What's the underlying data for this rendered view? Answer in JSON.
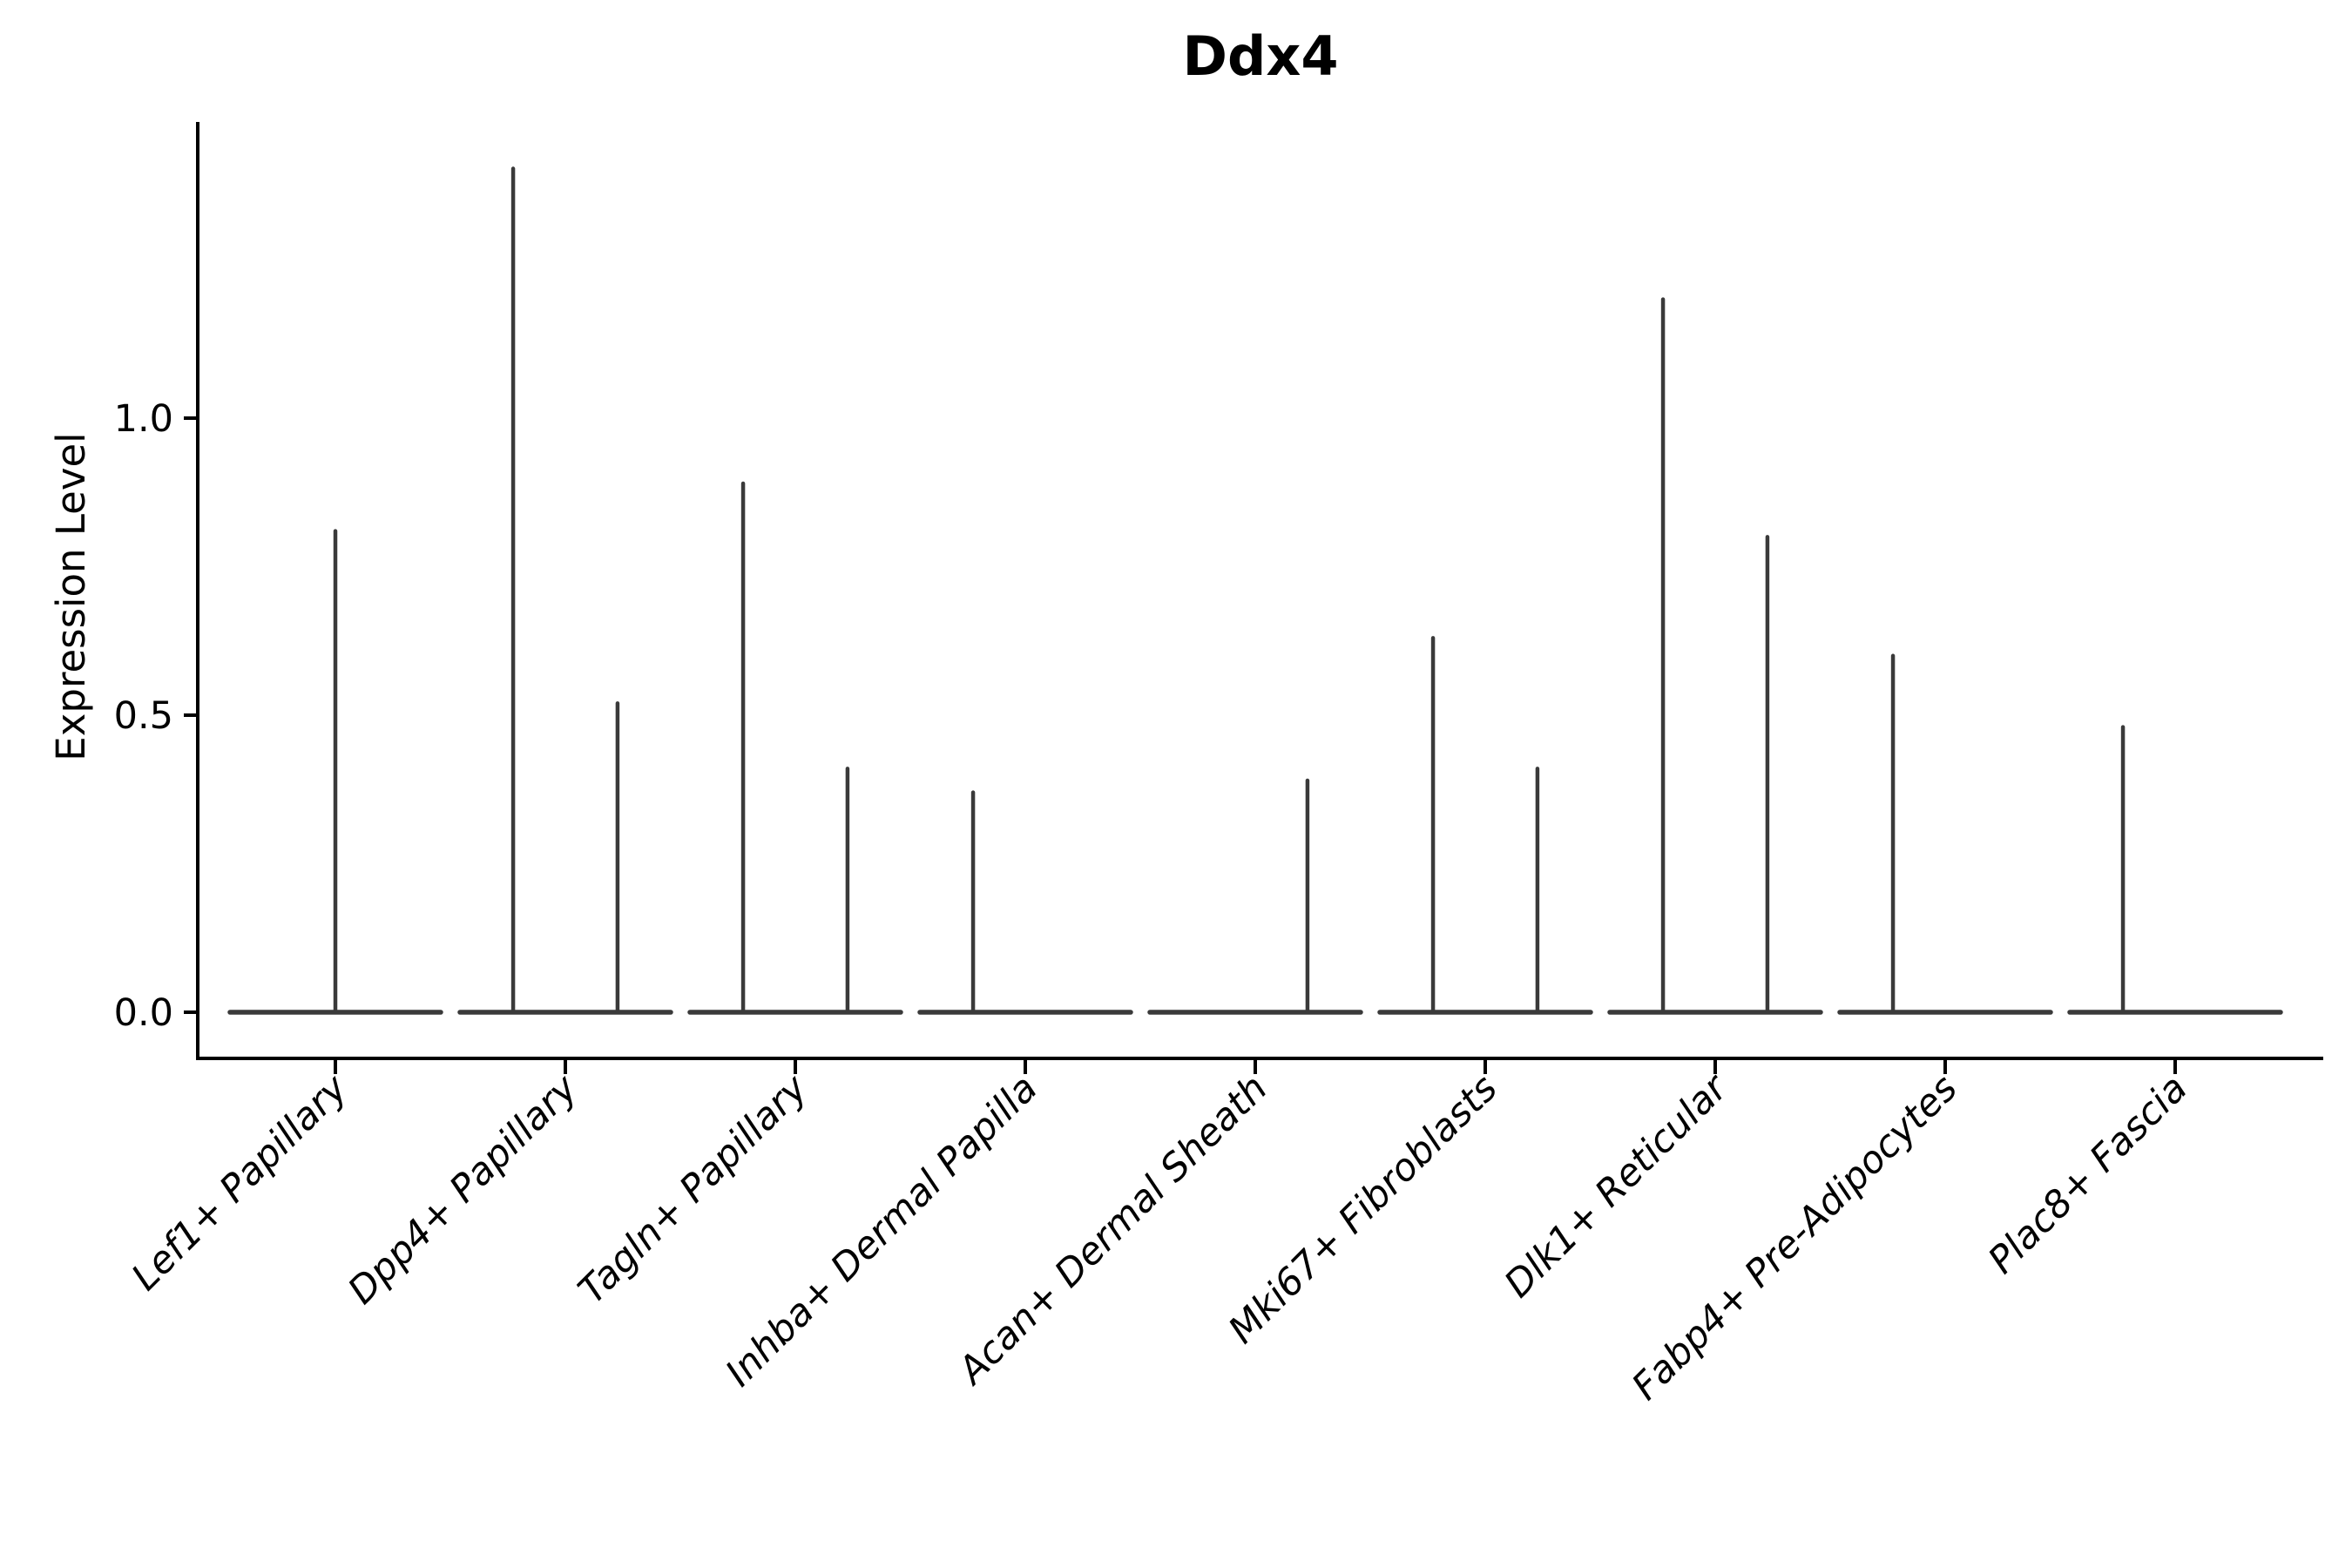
{
  "figure": {
    "title": "Ddx4",
    "ylabel": "Expression Level"
  },
  "chart_data": {
    "type": "violin",
    "title": "Ddx4",
    "xlabel": "",
    "ylabel": "Expression Level",
    "ylim": [
      -0.08,
      1.5
    ],
    "yticks": [
      0,
      0.5,
      1
    ],
    "ytick_labels": [
      "0.0",
      "0.5",
      "1.0"
    ],
    "grid": false,
    "legend": null,
    "violin_width": 0.9,
    "categories": [
      "Lef1+ Papillary",
      "Dpp4+ Papillary",
      "Tagln+ Papillary",
      "Inhba+ Dermal Papilla",
      "Acan+ Dermal Sheath",
      "Mki67+ Fibroblasts",
      "Dlk1+ Reticular",
      "Fabp4+ Pre-Adipocytes",
      "Plac8+ Fascia"
    ],
    "violins": [
      {
        "category": "Lef1+ Papillary",
        "spikes": [
          {
            "offset": 0.0,
            "value": 0.81
          }
        ]
      },
      {
        "category": "Dpp4+ Papillary",
        "spikes": [
          {
            "offset": -0.227,
            "value": 1.42
          },
          {
            "offset": 0.227,
            "value": 0.52
          }
        ]
      },
      {
        "category": "Tagln+ Papillary",
        "spikes": [
          {
            "offset": -0.227,
            "value": 0.89
          },
          {
            "offset": 0.227,
            "value": 0.41
          }
        ]
      },
      {
        "category": "Inhba+ Dermal Papilla",
        "spikes": [
          {
            "offset": -0.227,
            "value": 0.37
          }
        ]
      },
      {
        "category": "Acan+ Dermal Sheath",
        "spikes": [
          {
            "offset": 0.227,
            "value": 0.39
          }
        ]
      },
      {
        "category": "Mki67+ Fibroblasts",
        "spikes": [
          {
            "offset": -0.227,
            "value": 0.63
          },
          {
            "offset": 0.227,
            "value": 0.41
          }
        ]
      },
      {
        "category": "Dlk1+ Reticular",
        "spikes": [
          {
            "offset": -0.227,
            "value": 1.2
          },
          {
            "offset": 0.227,
            "value": 0.8
          }
        ]
      },
      {
        "category": "Fabp4+ Pre-Adipocytes",
        "spikes": [
          {
            "offset": -0.227,
            "value": 0.6
          }
        ]
      },
      {
        "category": "Plac8+ Fascia",
        "spikes": [
          {
            "offset": -0.227,
            "value": 0.48
          }
        ]
      }
    ],
    "style": {
      "violin_color": "#3a3a3a",
      "axis_color": "#000000",
      "text_color": "#000000",
      "background": "#ffffff"
    }
  }
}
